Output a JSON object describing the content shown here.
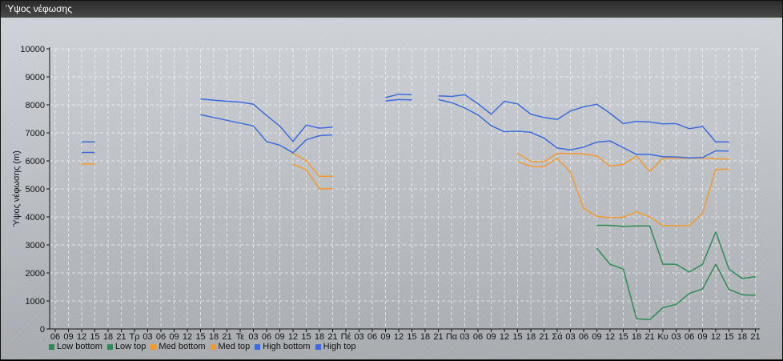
{
  "window": {
    "title": "Ύψος νέφωσης"
  },
  "chart_data": {
    "type": "line",
    "title": "",
    "xlabel": "",
    "ylabel": "Ύψος νέφωσης (m)",
    "ylim": [
      0,
      10000
    ],
    "yticks": [
      0,
      1000,
      2000,
      3000,
      4000,
      5000,
      6000,
      7000,
      8000,
      9000,
      10000
    ],
    "grid": true,
    "legend_position": "bottom-left",
    "categories": [
      "06",
      "09",
      "12",
      "15",
      "18",
      "21",
      "Τρ",
      "03",
      "06",
      "09",
      "12",
      "15",
      "18",
      "21",
      "Τε",
      "03",
      "06",
      "09",
      "12",
      "15",
      "18",
      "21",
      "Πέ",
      "03",
      "06",
      "09",
      "12",
      "15",
      "18",
      "21",
      "Πα",
      "03",
      "06",
      "09",
      "12",
      "15",
      "18",
      "21",
      "Σά",
      "03",
      "06",
      "09",
      "12",
      "15",
      "18",
      "21",
      "Κυ",
      "03",
      "06",
      "09",
      "12",
      "15",
      "18",
      "21"
    ],
    "series": [
      {
        "name": "Low bottom",
        "color": "#2e8b57",
        "values": [
          null,
          null,
          null,
          null,
          null,
          null,
          null,
          null,
          null,
          null,
          null,
          null,
          null,
          null,
          null,
          null,
          null,
          null,
          null,
          null,
          null,
          null,
          null,
          null,
          null,
          null,
          null,
          null,
          null,
          null,
          null,
          null,
          null,
          null,
          null,
          null,
          null,
          null,
          null,
          null,
          null,
          2880,
          2310,
          2140,
          370,
          330,
          760,
          880,
          1270,
          1430,
          2310,
          1410,
          1220,
          1200
        ]
      },
      {
        "name": "Low top",
        "color": "#2e8b57",
        "values": [
          null,
          null,
          null,
          null,
          null,
          null,
          null,
          null,
          null,
          null,
          null,
          null,
          null,
          null,
          null,
          null,
          null,
          null,
          null,
          null,
          null,
          null,
          null,
          null,
          null,
          null,
          null,
          null,
          null,
          null,
          null,
          null,
          null,
          null,
          null,
          null,
          null,
          null,
          null,
          null,
          null,
          3700,
          3700,
          3660,
          3680,
          3680,
          2310,
          2310,
          2030,
          2310,
          3460,
          2140,
          1800,
          1870
        ]
      },
      {
        "name": "Med bottom",
        "color": "#f39a2e",
        "values": [
          null,
          null,
          5890,
          5890,
          null,
          null,
          null,
          null,
          null,
          null,
          null,
          null,
          null,
          null,
          null,
          null,
          null,
          null,
          5880,
          5680,
          5010,
          5010,
          null,
          null,
          null,
          null,
          null,
          null,
          null,
          null,
          null,
          null,
          null,
          null,
          null,
          5970,
          5810,
          5800,
          6090,
          5600,
          4300,
          4020,
          3970,
          3990,
          4180,
          4000,
          3690,
          3690,
          3690,
          4130,
          5700,
          5700,
          null,
          null
        ]
      },
      {
        "name": "Med top",
        "color": "#f39a2e",
        "values": [
          null,
          null,
          6290,
          6290,
          null,
          null,
          null,
          null,
          null,
          null,
          null,
          null,
          null,
          null,
          null,
          null,
          null,
          null,
          6280,
          6000,
          5450,
          5450,
          null,
          null,
          null,
          null,
          null,
          null,
          null,
          null,
          null,
          null,
          null,
          null,
          null,
          6280,
          5980,
          5970,
          6270,
          6260,
          6250,
          6170,
          5810,
          5880,
          6170,
          5620,
          6100,
          6100,
          6100,
          6110,
          6080,
          6060,
          null,
          null
        ]
      },
      {
        "name": "High bottom",
        "color": "#3b6bdc",
        "values": [
          null,
          null,
          6300,
          6300,
          null,
          null,
          null,
          null,
          null,
          null,
          null,
          7650,
          7550,
          7450,
          7350,
          7250,
          6690,
          6560,
          6290,
          6750,
          6900,
          6930,
          null,
          null,
          null,
          8140,
          8190,
          8180,
          null,
          8190,
          8080,
          7890,
          7640,
          7260,
          7040,
          7060,
          7020,
          6810,
          6460,
          6390,
          6490,
          6670,
          6710,
          6470,
          6230,
          6230,
          6150,
          6140,
          6110,
          6120,
          6360,
          6350,
          null,
          null
        ]
      },
      {
        "name": "High top",
        "color": "#3b6bdc",
        "values": [
          null,
          null,
          6680,
          6680,
          null,
          null,
          null,
          null,
          null,
          null,
          null,
          8210,
          8170,
          8130,
          8100,
          8020,
          7620,
          7240,
          6700,
          7280,
          7170,
          7210,
          null,
          null,
          null,
          8260,
          8380,
          8360,
          null,
          8320,
          8300,
          8360,
          8040,
          7670,
          8130,
          8030,
          7670,
          7550,
          7480,
          7780,
          7930,
          8020,
          7700,
          7330,
          7410,
          7390,
          7320,
          7330,
          7150,
          7230,
          6680,
          6680,
          null,
          null
        ]
      }
    ]
  }
}
